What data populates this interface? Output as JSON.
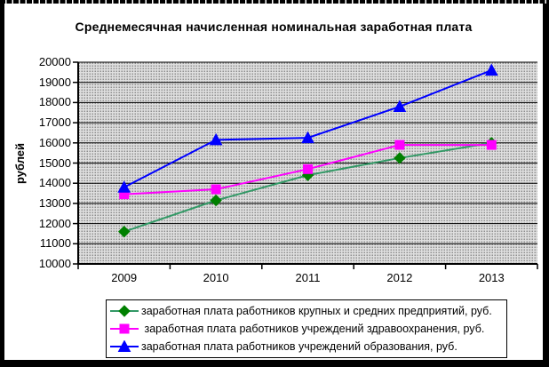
{
  "chart_data": {
    "type": "line",
    "title": "Среднемесячная начисленная номинальная заработная плата",
    "ylabel": "рублей",
    "xlabel": "",
    "x": [
      "2009",
      "2010",
      "2011",
      "2012",
      "2013"
    ],
    "ylim": [
      10000,
      20000
    ],
    "ytick_step": 1000,
    "y_ticks": [
      10000,
      11000,
      12000,
      13000,
      14000,
      15000,
      16000,
      17000,
      18000,
      19000,
      20000
    ],
    "grid": "horizontal",
    "legend_position": "bottom-boxed",
    "plot_bg_pattern": {
      "base": "#DFDFDF",
      "dot": "#8F8F8F"
    },
    "axis_color": "#000000",
    "series": [
      {
        "name": "заработная плата работников крупных и средних предприятий, руб.",
        "marker": "diamond",
        "line_color": "#339966",
        "marker_color": "#008000",
        "values": [
          11600,
          13150,
          14400,
          15250,
          16000
        ]
      },
      {
        "name": " заработная плата работников учреждений здравоохранения, руб.",
        "marker": "square",
        "line_color": "#FF00FF",
        "marker_color": "#FF00FF",
        "values": [
          13450,
          13700,
          14700,
          15900,
          15900
        ]
      },
      {
        "name": "заработная плата работников учреждений образования, руб.",
        "marker": "triangle",
        "line_color": "#0000FF",
        "marker_color": "#0000FF",
        "values": [
          13800,
          16150,
          16250,
          17800,
          19600
        ]
      }
    ]
  }
}
